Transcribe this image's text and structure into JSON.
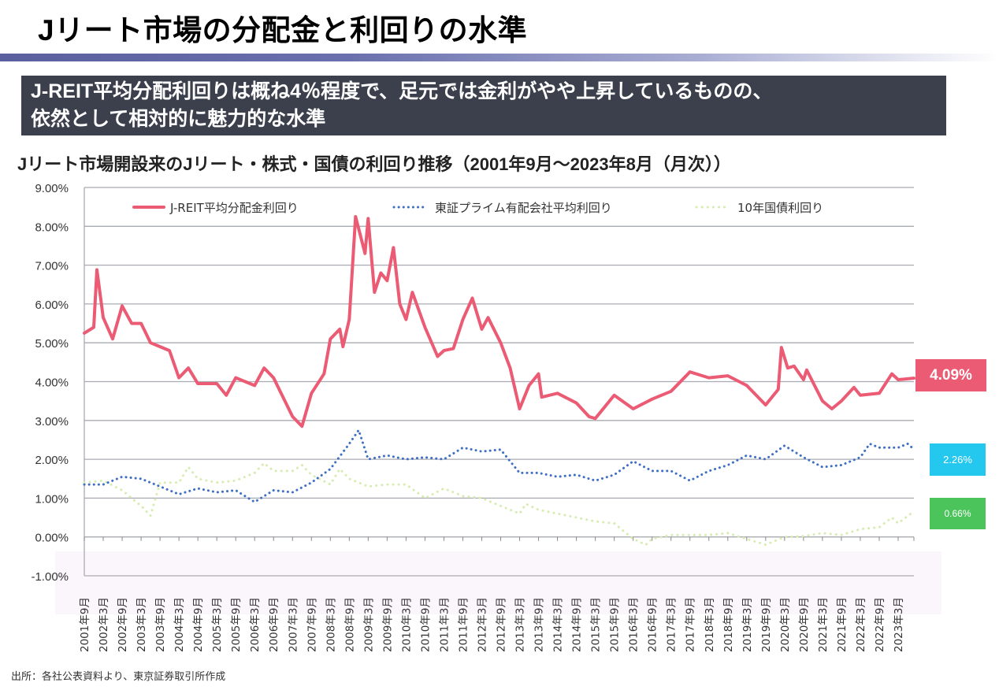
{
  "title": "Jリート市場の分配金と利回りの水準",
  "banner": {
    "line1": "J-REIT平均分配利回りは概ね4％程度で、足元では金利がやや上昇しているものの、",
    "line2": "依然として相対的に魅力的な水準"
  },
  "footer": "出所：各社公表資料より、東京証券取引所作成",
  "colors": {
    "jreit": "#ec5b74",
    "stock": "#3f6fc4",
    "jgb": "#d6ecb0",
    "stock_box": "#24c8ee",
    "jgb_box": "#4cc45c",
    "banner": "#3b404c"
  },
  "chart_data": {
    "type": "line",
    "title": "Jリート市場開設来のJリート・株式・国債の利回り推移（2001年9月～2023年8月（月次））",
    "xlabel": "",
    "ylabel": "",
    "ylim": [
      -1,
      9
    ],
    "y_ticks": [
      "9.00%",
      "8.00%",
      "7.00%",
      "6.00%",
      "5.00%",
      "4.00%",
      "3.00%",
      "2.00%",
      "1.00%",
      "0.00%",
      "-1.00%"
    ],
    "x_range": [
      "2001-09",
      "2023-08"
    ],
    "x_tick_labels": [
      "2001年9月",
      "2002年3月",
      "2002年9月",
      "2003年3月",
      "2003年9月",
      "2004年3月",
      "2004年9月",
      "2005年3月",
      "2005年9月",
      "2006年3月",
      "2006年9月",
      "2007年3月",
      "2007年9月",
      "2008年3月",
      "2008年9月",
      "2009年3月",
      "2009年9月",
      "2010年3月",
      "2010年9月",
      "2011年3月",
      "2011年9月",
      "2012年3月",
      "2012年9月",
      "2013年3月",
      "2013年9月",
      "2014年3月",
      "2014年9月",
      "2015年3月",
      "2015年9月",
      "2016年3月",
      "2016年9月",
      "2017年3月",
      "2017年9月",
      "2018年3月",
      "2018年9月",
      "2019年3月",
      "2019年9月",
      "2020年3月",
      "2020年9月",
      "2021年3月",
      "2021年9月",
      "2022年3月",
      "2022年9月",
      "2023年3月"
    ],
    "grid": true,
    "legend_position": "top",
    "series": [
      {
        "name": "J-REIT平均分配金利回り",
        "style": "solid",
        "color": "#ec5b74",
        "latest_label": "4.09%",
        "x": [
          "2001-09",
          "2001-12",
          "2002-01",
          "2002-03",
          "2002-06",
          "2002-09",
          "2002-12",
          "2003-03",
          "2003-06",
          "2003-09",
          "2003-12",
          "2004-03",
          "2004-06",
          "2004-09",
          "2005-03",
          "2005-06",
          "2005-09",
          "2006-03",
          "2006-06",
          "2006-09",
          "2007-03",
          "2007-06",
          "2007-09",
          "2008-01",
          "2008-03",
          "2008-06",
          "2008-07",
          "2008-09",
          "2008-11",
          "2009-02",
          "2009-03",
          "2009-05",
          "2009-07",
          "2009-09",
          "2009-11",
          "2010-01",
          "2010-03",
          "2010-05",
          "2010-09",
          "2011-01",
          "2011-03",
          "2011-06",
          "2011-09",
          "2011-12",
          "2012-03",
          "2012-05",
          "2012-09",
          "2012-12",
          "2013-03",
          "2013-06",
          "2013-09",
          "2013-10",
          "2014-03",
          "2014-09",
          "2015-01",
          "2015-03",
          "2015-09",
          "2016-03",
          "2016-09",
          "2017-03",
          "2017-09",
          "2018-03",
          "2018-09",
          "2019-03",
          "2019-09",
          "2020-01",
          "2020-02",
          "2020-04",
          "2020-06",
          "2020-09",
          "2020-10",
          "2021-03",
          "2021-06",
          "2021-09",
          "2022-01",
          "2022-03",
          "2022-09",
          "2023-01",
          "2023-03",
          "2023-08"
        ],
        "y": [
          5.25,
          5.4,
          6.88,
          5.65,
          5.1,
          5.95,
          5.5,
          5.5,
          5.0,
          4.9,
          4.8,
          4.1,
          4.35,
          3.95,
          3.95,
          3.65,
          4.1,
          3.9,
          4.35,
          4.1,
          3.1,
          2.85,
          3.7,
          4.2,
          5.1,
          5.35,
          4.9,
          5.6,
          8.25,
          7.3,
          8.2,
          6.3,
          6.8,
          6.6,
          7.45,
          6.0,
          5.6,
          6.3,
          5.4,
          4.65,
          4.8,
          4.85,
          5.6,
          6.15,
          5.35,
          5.65,
          5.0,
          4.35,
          3.3,
          3.9,
          4.2,
          3.6,
          3.7,
          3.45,
          3.1,
          3.05,
          3.65,
          3.3,
          3.55,
          3.75,
          4.25,
          4.1,
          4.15,
          3.9,
          3.4,
          3.8,
          4.88,
          4.35,
          4.4,
          4.05,
          4.3,
          3.5,
          3.3,
          3.5,
          3.85,
          3.65,
          3.7,
          4.2,
          4.05,
          4.09
        ]
      },
      {
        "name": "東証プライム有配会社平均利回り",
        "style": "dotted",
        "color": "#3f6fc4",
        "latest_label": "2.26%",
        "x": [
          "2001-09",
          "2002-03",
          "2002-09",
          "2003-03",
          "2003-09",
          "2004-03",
          "2004-09",
          "2005-03",
          "2005-09",
          "2006-03",
          "2006-09",
          "2007-03",
          "2007-09",
          "2008-03",
          "2008-09",
          "2008-12",
          "2009-03",
          "2009-09",
          "2010-03",
          "2010-09",
          "2011-03",
          "2011-09",
          "2012-03",
          "2012-09",
          "2013-03",
          "2013-09",
          "2014-03",
          "2014-09",
          "2015-03",
          "2015-09",
          "2016-03",
          "2016-09",
          "2017-03",
          "2017-09",
          "2018-03",
          "2018-09",
          "2019-03",
          "2019-09",
          "2020-03",
          "2020-09",
          "2021-03",
          "2021-09",
          "2022-03",
          "2022-06",
          "2022-09",
          "2023-03",
          "2023-06",
          "2023-08"
        ],
        "y": [
          1.35,
          1.35,
          1.55,
          1.5,
          1.3,
          1.1,
          1.25,
          1.15,
          1.2,
          0.9,
          1.2,
          1.15,
          1.4,
          1.75,
          2.4,
          2.75,
          2.0,
          2.1,
          2.0,
          2.05,
          2.0,
          2.3,
          2.2,
          2.25,
          1.65,
          1.65,
          1.55,
          1.6,
          1.45,
          1.6,
          1.95,
          1.7,
          1.7,
          1.45,
          1.7,
          1.85,
          2.1,
          2.0,
          2.35,
          2.05,
          1.8,
          1.85,
          2.05,
          2.4,
          2.3,
          2.3,
          2.4,
          2.26
        ]
      },
      {
        "name": "10年国債利回り",
        "style": "dotted",
        "color": "#d6ecb0",
        "latest_label": "0.66%",
        "x": [
          "2001-09",
          "2002-03",
          "2002-09",
          "2003-03",
          "2003-06",
          "2003-09",
          "2004-03",
          "2004-06",
          "2004-09",
          "2005-03",
          "2005-09",
          "2006-03",
          "2006-06",
          "2006-09",
          "2007-03",
          "2007-06",
          "2007-09",
          "2008-03",
          "2008-06",
          "2008-09",
          "2009-03",
          "2009-09",
          "2010-03",
          "2010-09",
          "2011-03",
          "2011-09",
          "2012-03",
          "2012-09",
          "2013-03",
          "2013-05",
          "2013-09",
          "2014-03",
          "2014-09",
          "2015-03",
          "2015-09",
          "2016-03",
          "2016-07",
          "2016-09",
          "2017-03",
          "2017-09",
          "2018-03",
          "2018-09",
          "2019-03",
          "2019-09",
          "2020-03",
          "2020-09",
          "2021-03",
          "2021-09",
          "2022-03",
          "2022-09",
          "2023-01",
          "2023-03",
          "2023-08"
        ],
        "y": [
          1.4,
          1.45,
          1.2,
          0.8,
          0.55,
          1.4,
          1.4,
          1.8,
          1.5,
          1.4,
          1.45,
          1.65,
          1.9,
          1.7,
          1.7,
          1.85,
          1.6,
          1.35,
          1.75,
          1.5,
          1.3,
          1.35,
          1.35,
          1.0,
          1.25,
          1.05,
          1.0,
          0.8,
          0.6,
          0.85,
          0.7,
          0.6,
          0.5,
          0.4,
          0.35,
          -0.05,
          -0.2,
          -0.05,
          0.05,
          0.05,
          0.05,
          0.1,
          -0.05,
          -0.2,
          0.0,
          0.02,
          0.1,
          0.05,
          0.2,
          0.25,
          0.5,
          0.35,
          0.66
        ]
      }
    ]
  }
}
